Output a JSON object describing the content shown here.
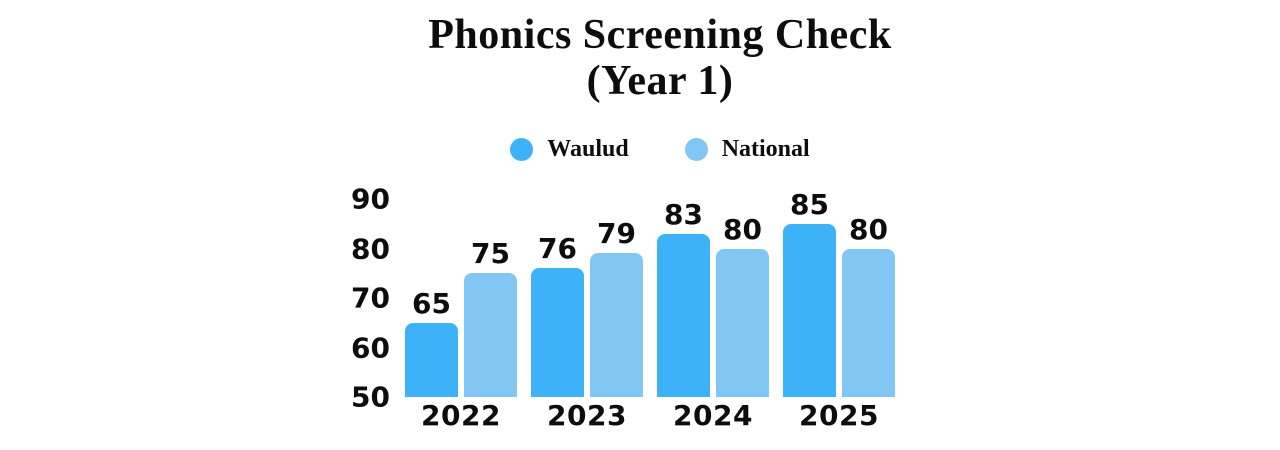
{
  "title": {
    "line1": "Phonics Screening Check",
    "line2": "(Year 1)"
  },
  "colors": {
    "background": "#FFFFFF",
    "text": "#0D0D0D",
    "waulud": "#3DB2F9",
    "national": "#82C7F3"
  },
  "chart_data": {
    "type": "bar",
    "title": "Phonics Screening Check (Year 1)",
    "categories": [
      "2022",
      "2023",
      "2024",
      "2025"
    ],
    "series": [
      {
        "name": "Waulud",
        "color": "#3DB2F9",
        "values": [
          65,
          76,
          83,
          85
        ]
      },
      {
        "name": "National",
        "color": "#82C7F3",
        "values": [
          75,
          79,
          80,
          80
        ]
      }
    ],
    "xlabel": "",
    "ylabel": "",
    "ylim": [
      50,
      90
    ],
    "yticks": [
      90,
      80,
      70,
      60,
      50
    ],
    "grid": false,
    "legend_position": "top",
    "bar_value_labels": true
  }
}
